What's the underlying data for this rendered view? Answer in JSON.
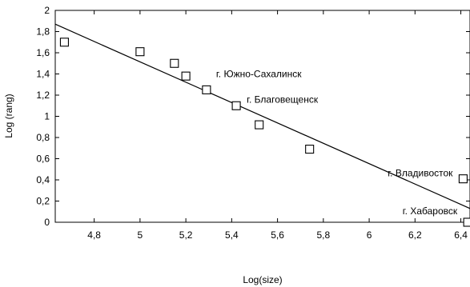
{
  "chart_data": {
    "type": "scatter",
    "title": "",
    "xlabel": "Log(size)",
    "ylabel": "Log (rang)",
    "xlim": [
      4.63,
      6.44
    ],
    "ylim": [
      0,
      2
    ],
    "grid": false,
    "legend": "none",
    "x_ticks": [
      "4,8",
      "5",
      "5,2",
      "5,4",
      "5,6",
      "5,8",
      "6",
      "6,2",
      "6,4"
    ],
    "y_ticks": [
      "0",
      "0,2",
      "0,4",
      "0,6",
      "0,8",
      "1",
      "1,2",
      "1,4",
      "1,6",
      "1,8",
      "2"
    ],
    "series": [
      {
        "marker": "open-square",
        "color": "#000000",
        "points": [
          {
            "x": 4.67,
            "y": 1.7
          },
          {
            "x": 5.0,
            "y": 1.61
          },
          {
            "x": 5.15,
            "y": 1.5
          },
          {
            "x": 5.2,
            "y": 1.38
          },
          {
            "x": 5.29,
            "y": 1.25
          },
          {
            "x": 5.42,
            "y": 1.1
          },
          {
            "x": 5.52,
            "y": 0.92
          },
          {
            "x": 5.74,
            "y": 0.69
          },
          {
            "x": 6.41,
            "y": 0.41
          },
          {
            "x": 6.43,
            "y": 0.0
          }
        ]
      }
    ],
    "trendline": {
      "type": "linear",
      "x_start": 4.63,
      "y_start": 1.87,
      "x_end": 6.44,
      "y_end": 0.13,
      "color": "#000000"
    },
    "annotations": [
      {
        "text": "г. Южно-Сахалинск",
        "x": 5.29,
        "y": 1.25
      },
      {
        "text": "г. Благовещенск",
        "x": 5.42,
        "y": 1.1
      },
      {
        "text": "г. Владивосток",
        "x": 6.41,
        "y": 0.41
      },
      {
        "text": "г. Хабаровск",
        "x": 6.43,
        "y": 0.0
      }
    ]
  }
}
